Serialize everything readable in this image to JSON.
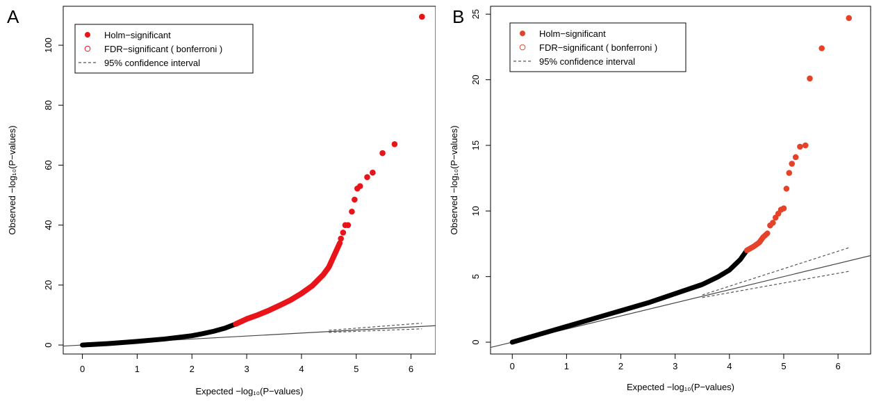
{
  "chart_data": [
    {
      "panel_label": "A",
      "type": "scatter",
      "title": "",
      "xlabel": "Expected −log₁₀(P−values)",
      "ylabel": "Observed −log₁₀(P−values)",
      "xlim": [
        -0.35,
        6.45
      ],
      "ylim": [
        -3,
        113
      ],
      "xticks": [
        0,
        1,
        2,
        3,
        4,
        5,
        6
      ],
      "yticks": [
        0,
        20,
        40,
        60,
        80,
        100
      ],
      "grid": false,
      "legend_position": "top-left",
      "legend": [
        {
          "label": "Holm−significant",
          "symbol": "filled-circle",
          "color": "#e8141a"
        },
        {
          "label": "FDR−significant ( bonferroni )",
          "symbol": "open-circle",
          "color": "#e8141a"
        },
        {
          "label": "95% confidence interval",
          "symbol": "dashed-line",
          "color": "#555555"
        }
      ],
      "reference_line": {
        "slope": 1.0,
        "x": [
          -0.35,
          6.45
        ],
        "color": "#444444"
      },
      "confidence_interval": {
        "x": [
          4.5,
          6.2
        ],
        "lower": [
          4.2,
          5.4
        ],
        "upper": [
          4.9,
          7.3
        ],
        "color": "#555555"
      },
      "nonsignificant_curve": {
        "color": "#000000",
        "points": [
          [
            0,
            0
          ],
          [
            0.5,
            0.5
          ],
          [
            1,
            1.2
          ],
          [
            1.5,
            2
          ],
          [
            2,
            3.1
          ],
          [
            2.2,
            3.8
          ],
          [
            2.4,
            4.6
          ],
          [
            2.6,
            5.6
          ],
          [
            2.8,
            7
          ]
        ]
      },
      "significant_curve": {
        "color": "#e8141a",
        "points": [
          [
            2.8,
            7
          ],
          [
            3,
            8.7
          ],
          [
            3.2,
            10
          ],
          [
            3.4,
            11.5
          ],
          [
            3.6,
            13.2
          ],
          [
            3.8,
            15
          ],
          [
            4,
            17.2
          ],
          [
            4.2,
            19.8
          ],
          [
            4.4,
            23.5
          ],
          [
            4.5,
            26
          ],
          [
            4.6,
            30
          ],
          [
            4.7,
            34
          ]
        ]
      },
      "significant_points": [
        [
          4.72,
          35.5
        ],
        [
          4.76,
          37.5
        ],
        [
          4.8,
          40
        ],
        [
          4.85,
          40
        ],
        [
          4.92,
          44.5
        ],
        [
          4.97,
          48.5
        ],
        [
          5.02,
          52.2
        ],
        [
          5.07,
          53
        ],
        [
          5.2,
          56
        ],
        [
          5.3,
          57.5
        ],
        [
          5.48,
          64
        ],
        [
          5.7,
          67
        ],
        [
          6.2,
          109.5
        ]
      ]
    },
    {
      "panel_label": "B",
      "type": "scatter",
      "title": "",
      "xlabel": "Expected −log₁₀(P−values)",
      "ylabel": "Observed −log₁₀(P−values)",
      "xlim": [
        -0.4,
        6.6
      ],
      "ylim": [
        -0.9,
        25.6
      ],
      "xticks": [
        0,
        1,
        2,
        3,
        4,
        5,
        6
      ],
      "yticks": [
        0,
        5,
        10,
        15,
        20,
        25
      ],
      "grid": false,
      "legend_position": "top-left",
      "legend": [
        {
          "label": "Holm−significant",
          "symbol": "filled-circle",
          "color": "#e5422a"
        },
        {
          "label": "FDR−significant ( bonferroni )",
          "symbol": "open-circle",
          "color": "#e5422a"
        },
        {
          "label": "95% confidence interval",
          "symbol": "dashed-line",
          "color": "#555555"
        }
      ],
      "reference_line": {
        "slope": 1.0,
        "x": [
          -0.4,
          6.6
        ],
        "color": "#444444"
      },
      "confidence_interval": {
        "x": [
          3.5,
          6.2
        ],
        "lower": [
          3.4,
          5.4
        ],
        "upper": [
          3.6,
          7.2
        ],
        "color": "#555555"
      },
      "nonsignificant_curve": {
        "color": "#000000",
        "points": [
          [
            0,
            0
          ],
          [
            0.5,
            0.6
          ],
          [
            1,
            1.2
          ],
          [
            1.5,
            1.8
          ],
          [
            2,
            2.4
          ],
          [
            2.5,
            3
          ],
          [
            3,
            3.7
          ],
          [
            3.5,
            4.4
          ],
          [
            3.8,
            5
          ],
          [
            4,
            5.5
          ],
          [
            4.2,
            6.3
          ],
          [
            4.32,
            7
          ]
        ]
      },
      "significant_curve": {
        "color": "#e5422a",
        "points": [
          [
            4.32,
            7
          ],
          [
            4.45,
            7.3
          ],
          [
            4.55,
            7.6
          ],
          [
            4.62,
            8
          ],
          [
            4.7,
            8.3
          ]
        ]
      },
      "significant_points": [
        [
          4.75,
          8.9
        ],
        [
          4.8,
          9.1
        ],
        [
          4.85,
          9.5
        ],
        [
          4.9,
          9.8
        ],
        [
          4.95,
          10.1
        ],
        [
          5,
          10.2
        ],
        [
          5.05,
          11.7
        ],
        [
          5.1,
          12.9
        ],
        [
          5.15,
          13.6
        ],
        [
          5.22,
          14.1
        ],
        [
          5.3,
          14.9
        ],
        [
          5.4,
          15
        ],
        [
          5.48,
          20.1
        ],
        [
          5.7,
          22.4
        ],
        [
          6.2,
          24.7
        ]
      ]
    }
  ]
}
